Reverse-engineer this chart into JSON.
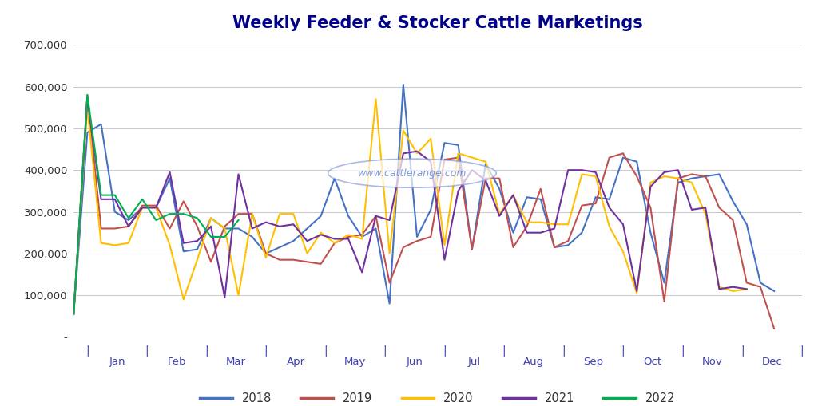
{
  "title": "Weekly Feeder & Stocker Cattle Marketings",
  "watermark": "www.cattlerange.com",
  "background_color": "#ffffff",
  "grid_color": "#c8c8d0",
  "title_color": "#00008B",
  "axis_tick_color": "#4040b8",
  "ylim": [
    0,
    720000
  ],
  "yticks": [
    0,
    100000,
    200000,
    300000,
    400000,
    500000,
    600000,
    700000
  ],
  "ytick_labels": [
    "-",
    "100,000",
    "200,000",
    "300,000",
    "400,000",
    "500,000",
    "600,000",
    "700,000"
  ],
  "months": [
    "Jan",
    "Feb",
    "Mar",
    "Apr",
    "May",
    "Jun",
    "Jul",
    "Aug",
    "Sep",
    "Oct",
    "Nov",
    "Dec"
  ],
  "series": [
    {
      "label": "2018",
      "color": "#4472C4",
      "data": [
        55000,
        490000,
        510000,
        300000,
        280000,
        310000,
        310000,
        380000,
        205000,
        210000,
        285000,
        260000,
        260000,
        240000,
        200000,
        215000,
        230000,
        260000,
        290000,
        380000,
        290000,
        240000,
        260000,
        80000,
        605000,
        240000,
        305000,
        465000,
        460000,
        210000,
        415000,
        355000,
        250000,
        335000,
        330000,
        215000,
        220000,
        250000,
        335000,
        330000,
        430000,
        420000,
        250000,
        130000,
        370000,
        380000,
        385000,
        390000,
        325000,
        270000,
        130000,
        110000
      ]
    },
    {
      "label": "2019",
      "color": "#C0504D",
      "data": [
        55000,
        580000,
        260000,
        260000,
        265000,
        315000,
        315000,
        260000,
        325000,
        265000,
        180000,
        265000,
        295000,
        295000,
        200000,
        185000,
        185000,
        180000,
        175000,
        225000,
        240000,
        245000,
        290000,
        130000,
        215000,
        230000,
        240000,
        425000,
        430000,
        210000,
        380000,
        380000,
        215000,
        265000,
        355000,
        215000,
        230000,
        315000,
        320000,
        430000,
        440000,
        385000,
        310000,
        85000,
        380000,
        390000,
        385000,
        310000,
        280000,
        130000,
        120000,
        20000
      ]
    },
    {
      "label": "2020",
      "color": "#FFBF00",
      "data": [
        55000,
        550000,
        225000,
        220000,
        225000,
        310000,
        310000,
        220000,
        90000,
        185000,
        285000,
        260000,
        100000,
        295000,
        190000,
        295000,
        295000,
        200000,
        250000,
        225000,
        245000,
        235000,
        570000,
        200000,
        495000,
        440000,
        475000,
        220000,
        440000,
        430000,
        420000,
        295000,
        340000,
        275000,
        275000,
        270000,
        270000,
        390000,
        385000,
        265000,
        205000,
        105000,
        370000,
        385000,
        380000,
        370000,
        295000,
        120000,
        110000,
        115000,
        null,
        null
      ]
    },
    {
      "label": "2021",
      "color": "#7030A0",
      "data": [
        55000,
        570000,
        330000,
        330000,
        265000,
        310000,
        310000,
        395000,
        225000,
        230000,
        265000,
        95000,
        390000,
        260000,
        275000,
        265000,
        270000,
        230000,
        245000,
        235000,
        235000,
        155000,
        290000,
        280000,
        440000,
        445000,
        420000,
        185000,
        350000,
        400000,
        375000,
        290000,
        340000,
        250000,
        250000,
        260000,
        400000,
        400000,
        395000,
        310000,
        270000,
        110000,
        360000,
        395000,
        400000,
        305000,
        310000,
        115000,
        120000,
        115000,
        null,
        null
      ]
    },
    {
      "label": "2022",
      "color": "#00B050",
      "data": [
        55000,
        580000,
        340000,
        340000,
        285000,
        330000,
        280000,
        295000,
        295000,
        285000,
        240000,
        240000,
        280000,
        null,
        null,
        null,
        null,
        null,
        null,
        null,
        null,
        null,
        null,
        null,
        null,
        null,
        null,
        null,
        null,
        null,
        null,
        null,
        null,
        null,
        null,
        null,
        null,
        null,
        null,
        null,
        null,
        null,
        null,
        null,
        null,
        null,
        null,
        null,
        null,
        null,
        null,
        null
      ]
    }
  ]
}
